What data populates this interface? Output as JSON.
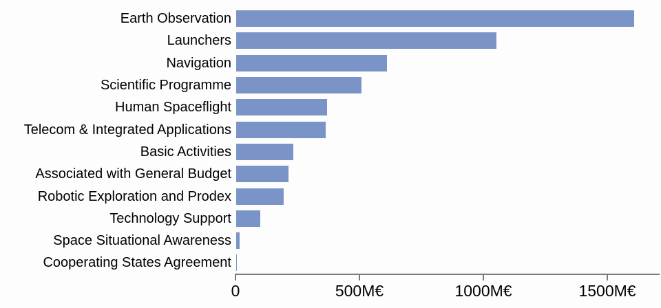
{
  "chart_data": {
    "type": "bar",
    "orientation": "horizontal",
    "title": "",
    "xlabel": "",
    "ylabel": "",
    "unit": "M€",
    "grid": false,
    "legend_position": "none",
    "categories": [
      "Earth Observation",
      "Launchers",
      "Navigation",
      "Scientific Programme",
      "Human Spaceflight",
      "Telecom & Integrated Applications",
      "Basic Activities",
      "Associated with General Budget",
      "Robotic Exploration and Prodex",
      "Technology Support",
      "Space Situational Awareness",
      "Cooperating States Agreement"
    ],
    "values": [
      1604,
      1047,
      608,
      505,
      365,
      360,
      230,
      212,
      190,
      97,
      14,
      4
    ],
    "x_ticks": [
      {
        "value": 0,
        "label": "0"
      },
      {
        "value": 500,
        "label": "500M€"
      },
      {
        "value": 1000,
        "label": "1000M€"
      },
      {
        "value": 1500,
        "label": "1500M€"
      }
    ],
    "xlim": [
      0,
      1711
    ],
    "colors": {
      "bar": "#7b94c8",
      "axis": "#7a7a7a",
      "text": "#000000",
      "background": "#fdfdfd"
    }
  }
}
